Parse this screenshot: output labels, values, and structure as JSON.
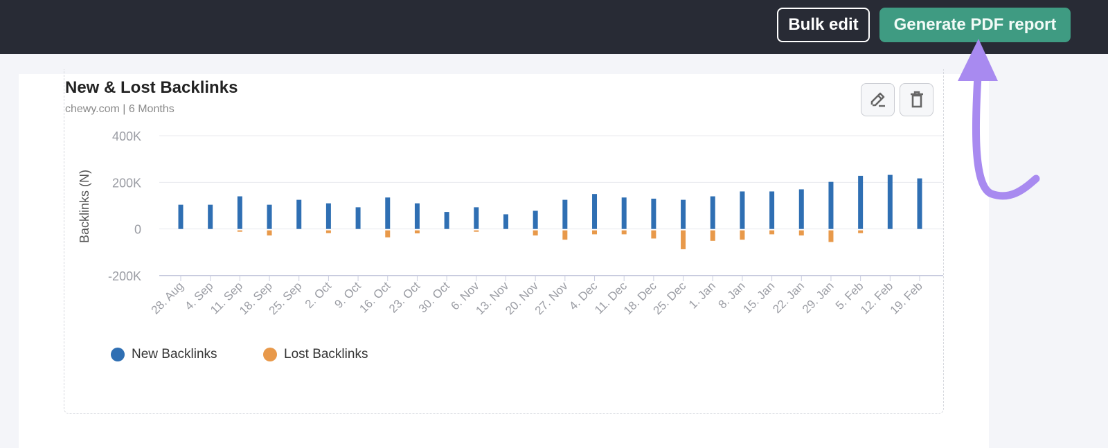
{
  "header": {
    "bulk_edit_label": "Bulk edit",
    "generate_pdf_label": "Generate PDF report"
  },
  "widget": {
    "title": "New & Lost Backlinks",
    "subtitle": "chewy.com | 6 Months",
    "edit_icon": "pencil-icon",
    "delete_icon": "trash-icon"
  },
  "colors": {
    "new": "#2f6fb3",
    "lost": "#e8994a",
    "accent": "#3f9b82",
    "annotation": "#a88af0"
  },
  "chart_data": {
    "type": "bar",
    "title": "New & Lost Backlinks",
    "ylabel": "Backlinks (N)",
    "ylim": [
      -200000,
      400000
    ],
    "yticks": [
      400000,
      200000,
      0,
      -200000
    ],
    "ytick_labels": [
      "400K",
      "200K",
      "0",
      "-200K"
    ],
    "grid": true,
    "legend": "bottom-left",
    "categories": [
      "28. Aug",
      "4. Sep",
      "11. Sep",
      "18. Sep",
      "25. Sep",
      "2. Oct",
      "9. Oct",
      "16. Oct",
      "23. Oct",
      "30. Oct",
      "6. Nov",
      "13. Nov",
      "20. Nov",
      "27. Nov",
      "4. Dec",
      "11. Dec",
      "18. Dec",
      "25. Dec",
      "1. Jan",
      "8. Jan",
      "15. Jan",
      "22. Jan",
      "29. Jan",
      "5. Feb",
      "12. Feb",
      "19. Feb"
    ],
    "series": [
      {
        "name": "New Backlinks",
        "values": [
          104000,
          104000,
          140000,
          104000,
          125000,
          110000,
          93000,
          135000,
          110000,
          73000,
          93000,
          63000,
          78000,
          125000,
          150000,
          135000,
          130000,
          125000,
          140000,
          161000,
          161000,
          170000,
          202000,
          228000,
          232000,
          217000
        ]
      },
      {
        "name": "Lost Backlinks",
        "values": [
          0,
          0,
          -5000,
          -22000,
          0,
          -12000,
          0,
          -30000,
          -13000,
          0,
          -6000,
          0,
          -22000,
          -40000,
          -17000,
          -17000,
          -35000,
          -81000,
          -45000,
          -40000,
          -17000,
          -22000,
          -50000,
          -12000,
          0,
          0
        ]
      }
    ]
  }
}
